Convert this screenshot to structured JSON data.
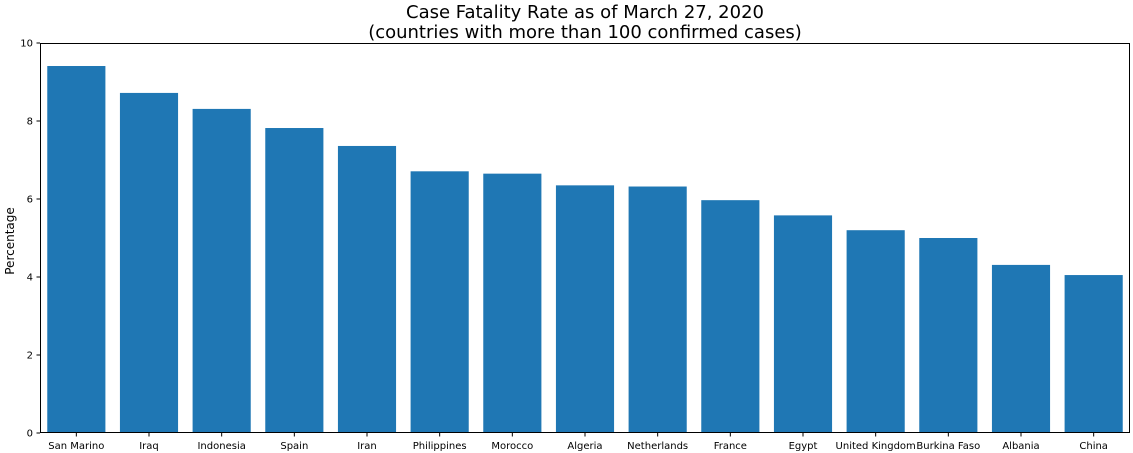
{
  "chart_data": {
    "type": "bar",
    "title": "Case Fatality Rate as of March 27, 2020",
    "subtitle": "(countries with more than 100 confirmed cases)",
    "xlabel": "",
    "ylabel": "Percentage",
    "ylim": [
      0,
      10
    ],
    "yticks": [
      0,
      2,
      4,
      6,
      8,
      10
    ],
    "grid": false,
    "legend": "none",
    "categories": [
      "San Marino",
      "Iraq",
      "Indonesia",
      "Spain",
      "Iran",
      "Philippines",
      "Morocco",
      "Algeria",
      "Netherlands",
      "France",
      "Egypt",
      "United Kingdom",
      "Burkina Faso",
      "Albania",
      "China"
    ],
    "values": [
      9.41,
      8.72,
      8.31,
      7.82,
      7.36,
      6.71,
      6.65,
      6.35,
      6.32,
      5.97,
      5.58,
      5.2,
      5.0,
      4.31,
      4.05
    ],
    "bar_color": "#1f77b4"
  }
}
